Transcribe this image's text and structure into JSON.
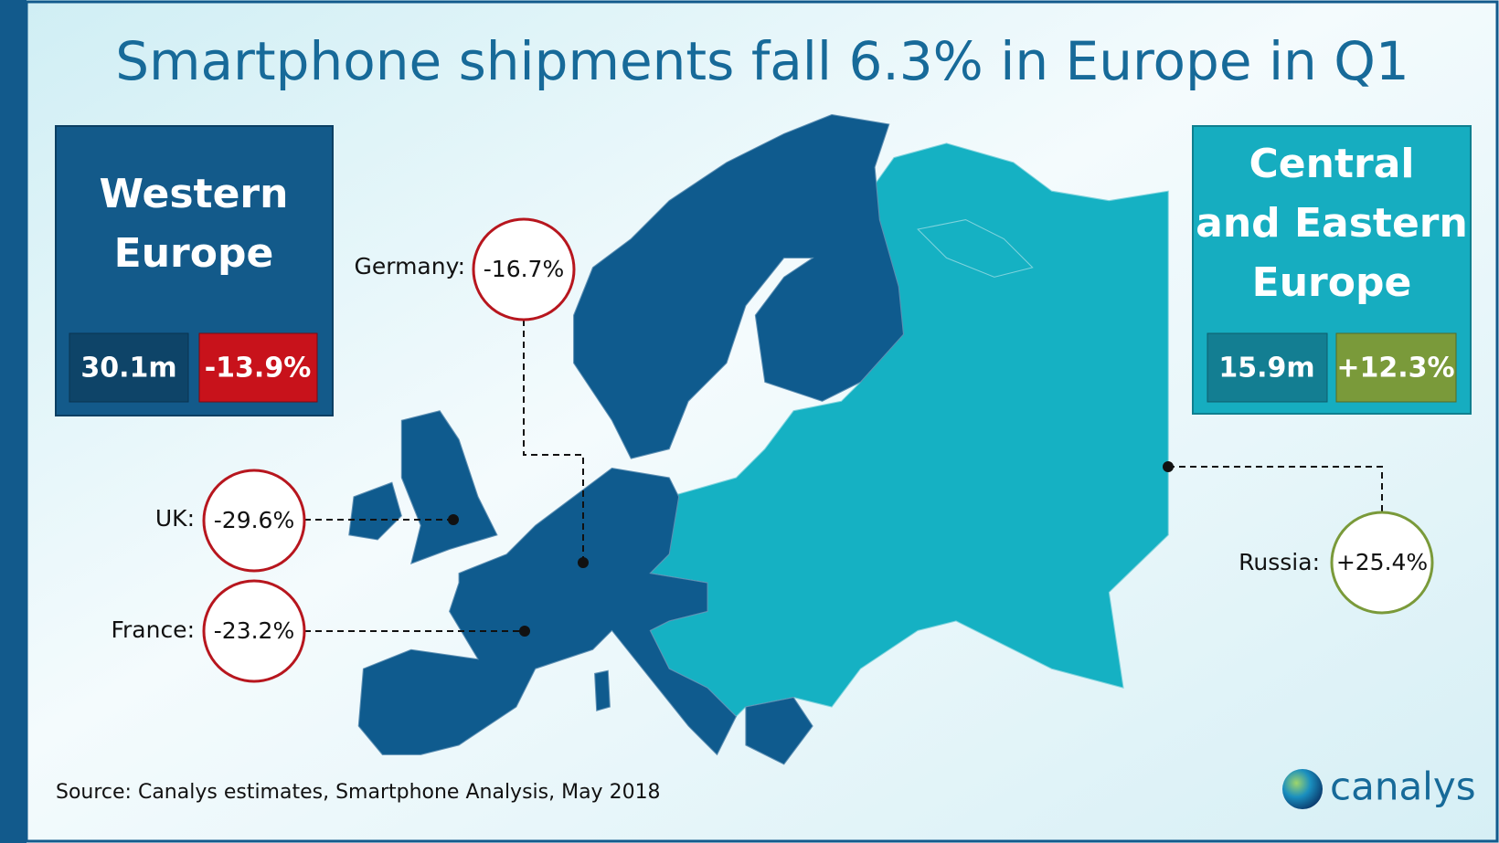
{
  "header": {
    "title": "Smartphone shipments fall 6.3% in Europe in Q1"
  },
  "regions": [
    {
      "name_lines": [
        "Western",
        "Europe"
      ],
      "shipments": "30.1m",
      "growth": "-13.9%"
    },
    {
      "name_lines": [
        "Central",
        "and Eastern",
        "Europe"
      ],
      "shipments": "15.9m",
      "growth": "+12.3%"
    }
  ],
  "countries": [
    {
      "label": "Germany:",
      "change": "-16.7%"
    },
    {
      "label": "UK:",
      "change": "-29.6%"
    },
    {
      "label": "France:",
      "change": "-23.2%"
    },
    {
      "label": "Russia:",
      "change": "+25.4%"
    }
  ],
  "footer": {
    "source": "Source: Canalys estimates, Smartphone Analysis, May 2018",
    "logo": "canalys"
  }
}
